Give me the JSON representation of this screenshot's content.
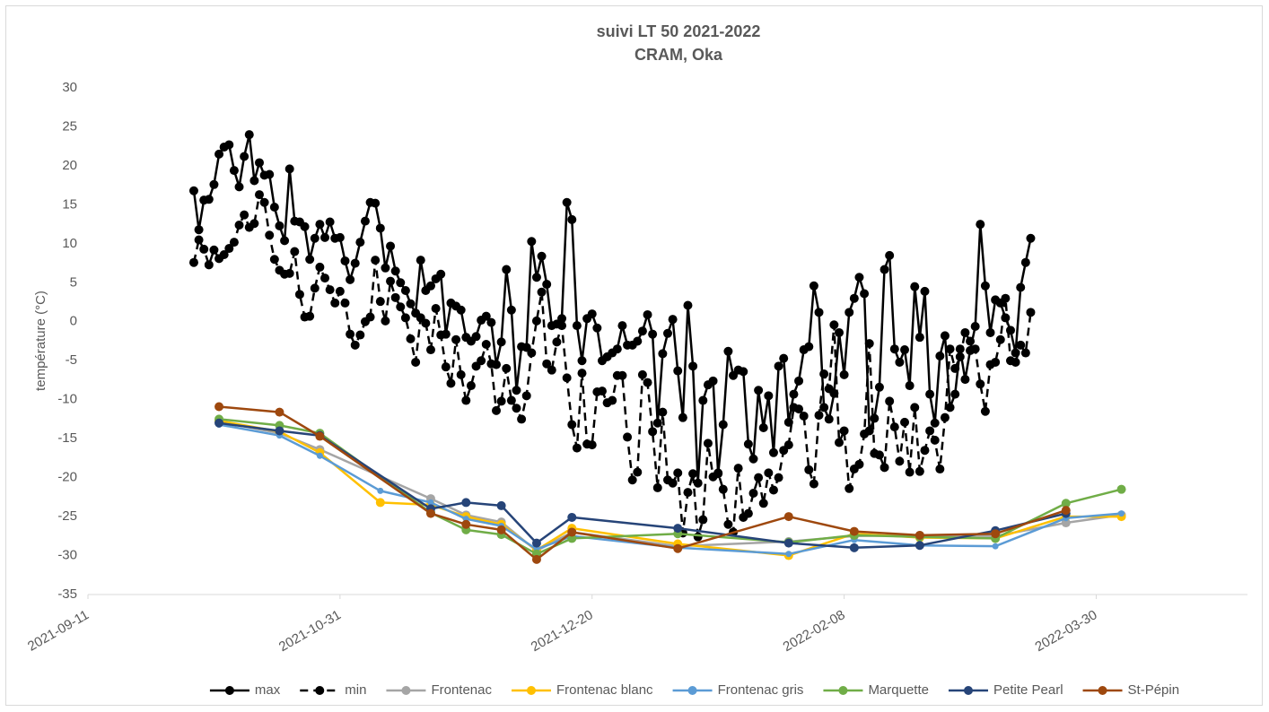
{
  "chart_data": {
    "type": "line",
    "title": "suivi LT 50 2021-2022",
    "subtitle": "CRAM, Oka",
    "y_label": "température (°C)",
    "xlim": [
      "2021-09-11",
      "2022-04-29"
    ],
    "xticks": [
      "2021-09-11",
      "2021-10-31",
      "2021-12-20",
      "2022-02-08",
      "2022-03-30"
    ],
    "ylim": [
      -35,
      30
    ],
    "yticks": [
      -35,
      -30,
      -25,
      -20,
      -15,
      -10,
      -5,
      0,
      5,
      10,
      15,
      20,
      25,
      30
    ],
    "grid": false,
    "legend": "bottom",
    "series": [
      {
        "name": "max",
        "color": "#000000",
        "line_style": "solid",
        "x": [
          "2021-10-02",
          "2021-10-03",
          "2021-10-04",
          "2021-10-05",
          "2021-10-06",
          "2021-10-07",
          "2021-10-08",
          "2021-10-09",
          "2021-10-10",
          "2021-10-11",
          "2021-10-12",
          "2021-10-13",
          "2021-10-14",
          "2021-10-15",
          "2021-10-16",
          "2021-10-17",
          "2021-10-18",
          "2021-10-19",
          "2021-10-20",
          "2021-10-21",
          "2021-10-22",
          "2021-10-23",
          "2021-10-24",
          "2021-10-25",
          "2021-10-26",
          "2021-10-27",
          "2021-10-28",
          "2021-10-29",
          "2021-10-30",
          "2021-10-31",
          "2021-11-01",
          "2021-11-02",
          "2021-11-03",
          "2021-11-04",
          "2021-11-05",
          "2021-11-06",
          "2021-11-07",
          "2021-11-08",
          "2021-11-09",
          "2021-11-10",
          "2021-11-11",
          "2021-11-12",
          "2021-11-13",
          "2021-11-14",
          "2021-11-15",
          "2021-11-16",
          "2021-11-17",
          "2021-11-18",
          "2021-11-19",
          "2021-11-20",
          "2021-11-21",
          "2021-11-22",
          "2021-11-23",
          "2021-11-24",
          "2021-11-25",
          "2021-11-26",
          "2021-11-27",
          "2021-11-28",
          "2021-11-29",
          "2021-11-30",
          "2021-12-01",
          "2021-12-02",
          "2021-12-03",
          "2021-12-04",
          "2021-12-05",
          "2021-12-06",
          "2021-12-07",
          "2021-12-08",
          "2021-12-09",
          "2021-12-10",
          "2021-12-11",
          "2021-12-12",
          "2021-12-13",
          "2021-12-14",
          "2021-12-15",
          "2021-12-16",
          "2021-12-17",
          "2021-12-18",
          "2021-12-19",
          "2021-12-20",
          "2021-12-21",
          "2021-12-22",
          "2021-12-23",
          "2021-12-24",
          "2021-12-25",
          "2021-12-26",
          "2021-12-27",
          "2021-12-28",
          "2021-12-29",
          "2021-12-30",
          "2021-12-31",
          "2022-01-01",
          "2022-01-02",
          "2022-01-03",
          "2022-01-04",
          "2022-01-05",
          "2022-01-06",
          "2022-01-07",
          "2022-01-08",
          "2022-01-09",
          "2022-01-10",
          "2022-01-11",
          "2022-01-12",
          "2022-01-13",
          "2022-01-14",
          "2022-01-15",
          "2022-01-16",
          "2022-01-17",
          "2022-01-18",
          "2022-01-19",
          "2022-01-20",
          "2022-01-21",
          "2022-01-22",
          "2022-01-23",
          "2022-01-24",
          "2022-01-25",
          "2022-01-26",
          "2022-01-27",
          "2022-01-28",
          "2022-01-29",
          "2022-01-30",
          "2022-01-31",
          "2022-02-01",
          "2022-02-02",
          "2022-02-03",
          "2022-02-04",
          "2022-02-05",
          "2022-02-06",
          "2022-02-07",
          "2022-02-08",
          "2022-02-09",
          "2022-02-10",
          "2022-02-11",
          "2022-02-12",
          "2022-02-13",
          "2022-02-14",
          "2022-02-15",
          "2022-02-16",
          "2022-02-17",
          "2022-02-18",
          "2022-02-19",
          "2022-02-20",
          "2022-02-21",
          "2022-02-22",
          "2022-02-23",
          "2022-02-24",
          "2022-02-25",
          "2022-02-26",
          "2022-02-27",
          "2022-02-28",
          "2022-03-01",
          "2022-03-02",
          "2022-03-03",
          "2022-03-04",
          "2022-03-05",
          "2022-03-06",
          "2022-03-07",
          "2022-03-08",
          "2022-03-09",
          "2022-03-10",
          "2022-03-11",
          "2022-03-12",
          "2022-03-13",
          "2022-03-14",
          "2022-03-15",
          "2022-03-16",
          "2022-03-17"
        ],
        "values": [
          16.8,
          11.8,
          15.6,
          15.7,
          17.6,
          21.5,
          22.4,
          22.7,
          19.4,
          17.3,
          21.2,
          24.0,
          18.1,
          20.4,
          18.8,
          18.9,
          14.7,
          12.3,
          10.4,
          19.6,
          12.9,
          12.8,
          12.2,
          8.0,
          10.7,
          12.5,
          10.8,
          12.8,
          10.7,
          10.8,
          7.8,
          5.4,
          7.5,
          10.2,
          12.9,
          15.3,
          15.2,
          12.0,
          6.9,
          9.7,
          6.5,
          5.0,
          4.0,
          2.3,
          1.1,
          7.9,
          4.0,
          4.6,
          5.5,
          6.1,
          -1.6,
          2.4,
          2.0,
          1.5,
          -2.0,
          -2.5,
          -1.9,
          0.2,
          0.7,
          -0.1,
          -5.5,
          -2.6,
          6.7,
          1.5,
          -8.8,
          -3.2,
          -3.3,
          10.3,
          5.7,
          8.4,
          4.8,
          -0.5,
          -0.3,
          0.4,
          15.3,
          13.1,
          -0.5,
          -5.0,
          0.4,
          1.0,
          -0.8,
          -5.0,
          -4.5,
          -4.0,
          -3.5,
          -0.5,
          -3.0,
          -3.0,
          -2.5,
          -1.2,
          0.9,
          -1.6,
          -13.0,
          -4.1,
          -1.5,
          0.3,
          -6.3,
          -12.3,
          2.1,
          -5.7,
          -20.7,
          -10.1,
          -8.1,
          -7.6,
          -19.5,
          -13.2,
          -3.8,
          -6.9,
          -6.2,
          -6.4,
          -15.7,
          -17.6,
          -8.8,
          -13.6,
          -9.5,
          -16.8,
          -5.7,
          -4.7,
          -12.9,
          -9.3,
          -7.6,
          -3.6,
          -3.2,
          4.6,
          1.2,
          -11.0,
          -12.5,
          -9.2,
          -1.4,
          -6.8,
          1.2,
          3.0,
          5.7,
          3.6,
          -14.0,
          -12.4,
          -8.4,
          6.7,
          8.5,
          -3.5,
          -5.2,
          -3.6,
          -8.2,
          4.5,
          -2.0,
          3.9,
          -9.3,
          -13.0,
          -4.4,
          -1.8,
          -11.0,
          -9.3,
          -3.5,
          -7.4,
          -3.7,
          -0.6,
          12.5,
          4.6,
          -1.4,
          2.8,
          2.4,
          0.5,
          -1.1,
          -4.0,
          4.4,
          7.6,
          10.7
        ]
      },
      {
        "name": "min",
        "color": "#000000",
        "line_style": "dashed",
        "x": [
          "2021-10-02",
          "2021-10-03",
          "2021-10-04",
          "2021-10-05",
          "2021-10-06",
          "2021-10-07",
          "2021-10-08",
          "2021-10-09",
          "2021-10-10",
          "2021-10-11",
          "2021-10-12",
          "2021-10-13",
          "2021-10-14",
          "2021-10-15",
          "2021-10-16",
          "2021-10-17",
          "2021-10-18",
          "2021-10-19",
          "2021-10-20",
          "2021-10-21",
          "2021-10-22",
          "2021-10-23",
          "2021-10-24",
          "2021-10-25",
          "2021-10-26",
          "2021-10-27",
          "2021-10-28",
          "2021-10-29",
          "2021-10-30",
          "2021-10-31",
          "2021-11-01",
          "2021-11-02",
          "2021-11-03",
          "2021-11-04",
          "2021-11-05",
          "2021-11-06",
          "2021-11-07",
          "2021-11-08",
          "2021-11-09",
          "2021-11-10",
          "2021-11-11",
          "2021-11-12",
          "2021-11-13",
          "2021-11-14",
          "2021-11-15",
          "2021-11-16",
          "2021-11-17",
          "2021-11-18",
          "2021-11-19",
          "2021-11-20",
          "2021-11-21",
          "2021-11-22",
          "2021-11-23",
          "2021-11-24",
          "2021-11-25",
          "2021-11-26",
          "2021-11-27",
          "2021-11-28",
          "2021-11-29",
          "2021-11-30",
          "2021-12-01",
          "2021-12-02",
          "2021-12-03",
          "2021-12-04",
          "2021-12-05",
          "2021-12-06",
          "2021-12-07",
          "2021-12-08",
          "2021-12-09",
          "2021-12-10",
          "2021-12-11",
          "2021-12-12",
          "2021-12-13",
          "2021-12-14",
          "2021-12-15",
          "2021-12-16",
          "2021-12-17",
          "2021-12-18",
          "2021-12-19",
          "2021-12-20",
          "2021-12-21",
          "2021-12-22",
          "2021-12-23",
          "2021-12-24",
          "2021-12-25",
          "2021-12-26",
          "2021-12-27",
          "2021-12-28",
          "2021-12-29",
          "2021-12-30",
          "2021-12-31",
          "2022-01-01",
          "2022-01-02",
          "2022-01-03",
          "2022-01-04",
          "2022-01-05",
          "2022-01-06",
          "2022-01-07",
          "2022-01-08",
          "2022-01-09",
          "2022-01-10",
          "2022-01-11",
          "2022-01-12",
          "2022-01-13",
          "2022-01-14",
          "2022-01-15",
          "2022-01-16",
          "2022-01-17",
          "2022-01-18",
          "2022-01-19",
          "2022-01-20",
          "2022-01-21",
          "2022-01-22",
          "2022-01-23",
          "2022-01-24",
          "2022-01-25",
          "2022-01-26",
          "2022-01-27",
          "2022-01-28",
          "2022-01-29",
          "2022-01-30",
          "2022-01-31",
          "2022-02-01",
          "2022-02-02",
          "2022-02-03",
          "2022-02-04",
          "2022-02-05",
          "2022-02-06",
          "2022-02-07",
          "2022-02-08",
          "2022-02-09",
          "2022-02-10",
          "2022-02-11",
          "2022-02-12",
          "2022-02-13",
          "2022-02-14",
          "2022-02-15",
          "2022-02-16",
          "2022-02-17",
          "2022-02-18",
          "2022-02-19",
          "2022-02-20",
          "2022-02-21",
          "2022-02-22",
          "2022-02-23",
          "2022-02-24",
          "2022-02-25",
          "2022-02-26",
          "2022-02-27",
          "2022-02-28",
          "2022-03-01",
          "2022-03-02",
          "2022-03-03",
          "2022-03-04",
          "2022-03-05",
          "2022-03-06",
          "2022-03-07",
          "2022-03-08",
          "2022-03-09",
          "2022-03-10",
          "2022-03-11",
          "2022-03-12",
          "2022-03-13",
          "2022-03-14",
          "2022-03-15",
          "2022-03-16",
          "2022-03-17"
        ],
        "values": [
          7.6,
          10.5,
          9.3,
          7.3,
          9.2,
          8.1,
          8.6,
          9.4,
          10.2,
          12.4,
          13.7,
          12.1,
          12.6,
          16.3,
          15.3,
          11.1,
          8.0,
          6.6,
          6.1,
          6.2,
          9.0,
          3.5,
          0.6,
          0.7,
          4.3,
          7.0,
          5.6,
          4.1,
          2.4,
          3.9,
          2.4,
          -1.6,
          -3.0,
          -1.7,
          0.0,
          0.6,
          7.9,
          2.6,
          0.1,
          5.2,
          3.1,
          1.9,
          0.5,
          -2.2,
          -5.2,
          0.5,
          -0.2,
          -3.6,
          1.7,
          -1.7,
          -5.8,
          -7.9,
          -2.3,
          -6.8,
          -10.1,
          -8.2,
          -5.7,
          -5.0,
          -2.9,
          -5.4,
          -11.4,
          -10.2,
          -6.0,
          -10.1,
          -11.1,
          -12.5,
          -9.5,
          -4.0,
          0.1,
          3.8,
          -5.4,
          -6.2,
          -2.6,
          -0.5,
          -7.2,
          -13.2,
          -16.2,
          -6.6,
          -15.7,
          -15.8,
          -9.0,
          -8.9,
          -10.4,
          -10.1,
          -6.9,
          -6.9,
          -14.8,
          -20.3,
          -19.3,
          -6.8,
          -7.8,
          -14.1,
          -21.3,
          -11.6,
          -20.3,
          -20.7,
          -19.4,
          -27.1,
          -21.9,
          -19.5,
          -27.6,
          -25.4,
          -15.6,
          -19.9,
          -19.4,
          -21.5,
          -26.0,
          -27.0,
          -18.8,
          -25.1,
          -24.6,
          -22.0,
          -20.0,
          -23.3,
          -19.4,
          -21.6,
          -20.0,
          -16.5,
          -15.8,
          -11.0,
          -11.2,
          -12.1,
          -19.0,
          -20.8,
          -12.0,
          -6.7,
          -8.6,
          -0.4,
          -15.5,
          -14.0,
          -21.4,
          -18.9,
          -18.3,
          -14.4,
          -2.8,
          -16.9,
          -17.1,
          -18.7,
          -10.2,
          -13.5,
          -17.9,
          -12.9,
          -19.3,
          -11.0,
          -19.2,
          -16.5,
          -14.0,
          -15.2,
          -18.9,
          -12.3,
          -3.5,
          -6.0,
          -4.5,
          -1.4,
          -2.5,
          -3.5,
          -8.0,
          -11.5,
          -5.5,
          -5.2,
          -2.3,
          3.0,
          -5.0,
          -5.2,
          -3.0,
          -4.0,
          1.2
        ]
      },
      {
        "name": "Frontenac",
        "color": "#a5a5a5",
        "line_style": "solid",
        "x": [
          "2021-10-07",
          "2021-10-19",
          "2021-10-27",
          "2021-11-18",
          "2021-11-25",
          "2021-12-02",
          "2021-12-09",
          "2021-12-16",
          "2022-01-06",
          "2022-01-28",
          "2022-02-10",
          "2022-02-23",
          "2022-03-10",
          "2022-03-24",
          "2022-04-04"
        ],
        "values": [
          -12.8,
          -14.3,
          -16.4,
          -22.7,
          -24.8,
          -25.7,
          -29.4,
          -27.0,
          -28.8,
          -28.2,
          -27.5,
          -27.4,
          -27.5,
          -25.8,
          -24.8
        ]
      },
      {
        "name": "Frontenac blanc",
        "color": "#ffc000",
        "line_style": "solid",
        "x": [
          "2021-10-07",
          "2021-10-19",
          "2021-10-27",
          "2021-11-08",
          "2021-11-18",
          "2021-11-25",
          "2021-12-02",
          "2021-12-09",
          "2021-12-16",
          "2022-01-06",
          "2022-01-28",
          "2022-02-10",
          "2022-02-23",
          "2022-03-10",
          "2022-03-24",
          "2022-04-04"
        ],
        "values": [
          -12.7,
          -14.1,
          -16.8,
          -23.2,
          -23.5,
          -25.0,
          -26.0,
          -29.3,
          -26.5,
          -28.5,
          -30.0,
          -27.2,
          -27.7,
          -27.8,
          -25.0,
          -25.0
        ]
      },
      {
        "name": "Frontenac gris",
        "color": "#5b9bd5",
        "line_style": "solid",
        "x": [
          "2021-10-07",
          "2021-10-19",
          "2021-10-27",
          "2021-11-08",
          "2021-11-18",
          "2021-11-25",
          "2021-12-02",
          "2021-12-09",
          "2021-12-16",
          "2022-01-06",
          "2022-01-28",
          "2022-02-10",
          "2022-02-23",
          "2022-03-10",
          "2022-03-24",
          "2022-04-04"
        ],
        "values": [
          -13.2,
          -14.6,
          -17.2,
          -21.7,
          -23.2,
          -25.3,
          -26.2,
          -29.2,
          -27.5,
          -29.0,
          -29.8,
          -28.0,
          -28.7,
          -28.8,
          -25.2,
          -24.6
        ]
      },
      {
        "name": "Marquette",
        "color": "#70ad47",
        "line_style": "solid",
        "x": [
          "2021-10-07",
          "2021-10-19",
          "2021-10-27",
          "2021-11-18",
          "2021-11-25",
          "2021-12-02",
          "2021-12-09",
          "2021-12-16",
          "2022-01-06",
          "2022-01-28",
          "2022-02-10",
          "2022-02-23",
          "2022-03-10",
          "2022-03-24",
          "2022-04-04"
        ],
        "values": [
          -12.5,
          -13.3,
          -14.3,
          -24.5,
          -26.7,
          -27.3,
          -29.8,
          -27.8,
          -27.2,
          -28.3,
          -27.4,
          -27.6,
          -27.8,
          -23.3,
          -21.5
        ]
      },
      {
        "name": "Petite Pearl",
        "color": "#264478",
        "line_style": "solid",
        "x": [
          "2021-10-07",
          "2021-10-19",
          "2021-10-27",
          "2021-11-18",
          "2021-11-25",
          "2021-12-02",
          "2021-12-09",
          "2021-12-16",
          "2022-01-06",
          "2022-01-28",
          "2022-02-10",
          "2022-02-23",
          "2022-03-10",
          "2022-03-24"
        ],
        "values": [
          -13.0,
          -14.0,
          -14.6,
          -24.0,
          -23.2,
          -23.6,
          -28.4,
          -25.1,
          -26.5,
          -28.4,
          -29.0,
          -28.7,
          -26.8,
          -24.6
        ]
      },
      {
        "name": "St-Pépin",
        "color": "#9e480e",
        "line_style": "solid",
        "x": [
          "2021-10-07",
          "2021-10-19",
          "2021-10-27",
          "2021-11-18",
          "2021-11-25",
          "2021-12-02",
          "2021-12-09",
          "2021-12-16",
          "2022-01-06",
          "2022-01-28",
          "2022-02-10",
          "2022-02-23",
          "2022-03-10",
          "2022-03-24"
        ],
        "values": [
          -10.9,
          -11.6,
          -14.7,
          -24.6,
          -26.0,
          -26.7,
          -30.5,
          -27.0,
          -29.1,
          -25.0,
          -26.9,
          -27.4,
          -27.2,
          -24.2
        ]
      }
    ]
  }
}
